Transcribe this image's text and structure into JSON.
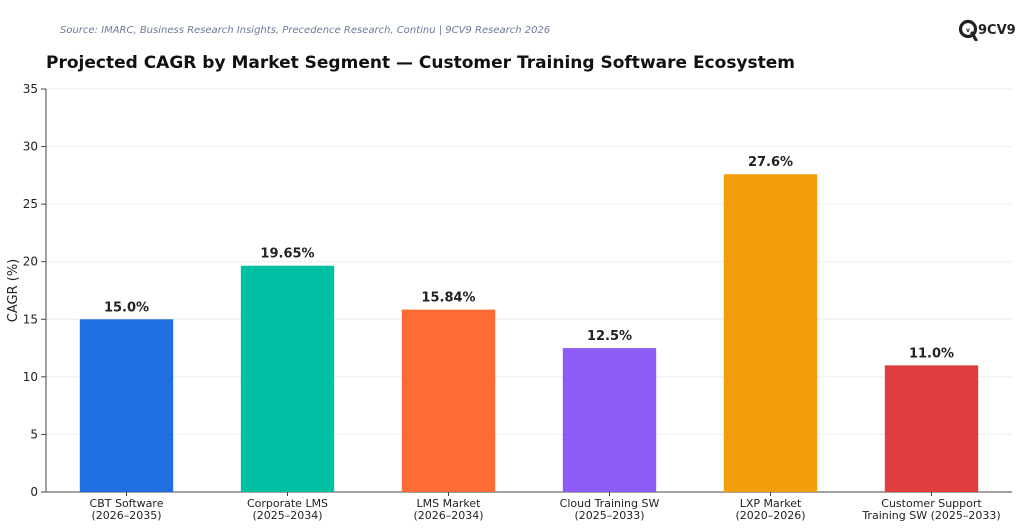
{
  "source": "Source: IMARC, Business Research Insights, Precedence Research, Continu | 9CV9 Research 2026",
  "logo": {
    "text": "9CV9",
    "icon": "9cv9-logo-icon"
  },
  "chart_data": {
    "type": "bar",
    "title": "Projected CAGR by Market Segment — Customer Training Software Ecosystem",
    "xlabel": "",
    "ylabel": "CAGR (%)",
    "ylim": [
      0,
      35
    ],
    "yticks": [
      0,
      5,
      10,
      15,
      20,
      25,
      30,
      35
    ],
    "grid": true,
    "categories": [
      [
        "CBT Software",
        "(2026–2035)"
      ],
      [
        "Corporate LMS",
        "(2025–2034)"
      ],
      [
        "LMS Market",
        "(2026–2034)"
      ],
      [
        "Cloud Training SW",
        "(2025–2033)"
      ],
      [
        "LXP Market",
        "(2020–2026)"
      ],
      [
        "Customer Support",
        "Training SW (2025–2033)"
      ]
    ],
    "values": [
      15.0,
      19.65,
      15.84,
      12.5,
      27.6,
      11.0
    ],
    "data_labels": [
      "15.0%",
      "19.65%",
      "15.84%",
      "12.5%",
      "27.6%",
      "11.0%"
    ],
    "colors": [
      "#1f6fe0",
      "#00c0a3",
      "#ff6b35",
      "#8b5cf6",
      "#f29e0c",
      "#e03e3e"
    ]
  }
}
